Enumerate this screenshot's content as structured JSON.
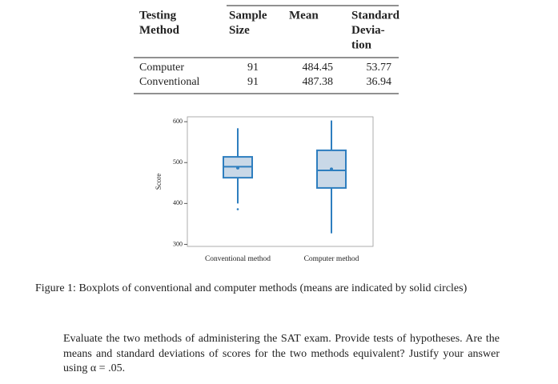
{
  "table": {
    "header": [
      [
        "Testing",
        "Method"
      ],
      [
        "Sample",
        "Size"
      ],
      [
        "Mean"
      ],
      [
        "Standard",
        "Devia-",
        "tion"
      ]
    ],
    "rows": [
      [
        "Computer",
        "91",
        "484.45",
        "53.77"
      ],
      [
        "Conventional",
        "91",
        "487.38",
        "36.94"
      ]
    ]
  },
  "chart_data": {
    "type": "box",
    "ylabel": "Score",
    "categories": [
      "Conventional method",
      "Computer method"
    ],
    "color": "#2e7ebf",
    "fill": "#c9d8e7",
    "series": [
      {
        "min": 400,
        "q1": 463,
        "median": 490,
        "q3": 514,
        "max": 584,
        "mean": 487,
        "outliers": [
          386
        ]
      },
      {
        "min": 327,
        "q1": 438,
        "median": 481,
        "q3": 530,
        "max": 603,
        "mean": 484,
        "outliers": []
      }
    ],
    "ylim": [
      295,
      612
    ],
    "yticks": [
      300,
      400,
      500,
      600
    ]
  },
  "caption": "Figure 1: Boxplots of conventional and computer methods (means are indicated by solid circles)",
  "question": "Evaluate the two methods of administering the SAT exam. Provide tests of hypotheses. Are the means and standard deviations of scores for the two methods equivalent? Justify your answer using α = .05."
}
